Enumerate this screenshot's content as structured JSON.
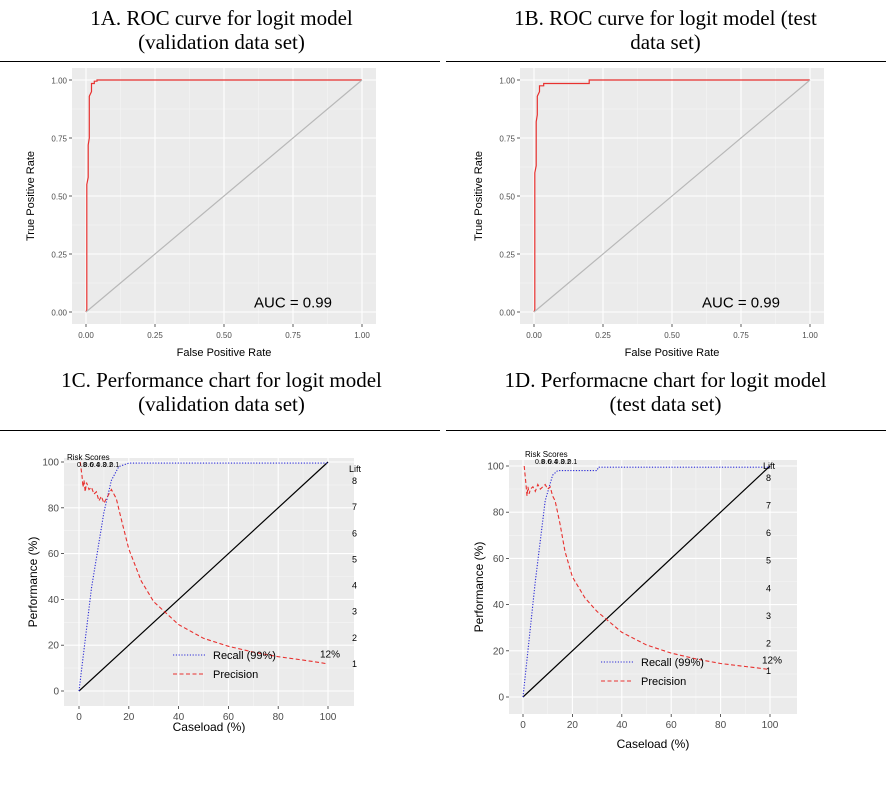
{
  "captions": {
    "a": [
      "1A. ROC curve for logit model",
      "(validation data set)"
    ],
    "b": [
      "1B. ROC curve for logit model (test",
      "data set)"
    ],
    "c": [
      "1C. Performance chart for logit model",
      "(validation data set)"
    ],
    "d": [
      "1D. Performacne chart for logit model",
      "(test data set)"
    ]
  },
  "chart_data": [
    {
      "id": "1A",
      "type": "line",
      "xlabel": "False Positive Rate",
      "ylabel": "True Positive Rate",
      "xlim": [
        0,
        1
      ],
      "ylim": [
        0,
        1
      ],
      "xticks": [
        "0.00",
        "0.25",
        "0.50",
        "0.75",
        "1.00"
      ],
      "yticks": [
        "0.00",
        "0.25",
        "0.50",
        "0.75",
        "1.00"
      ],
      "annotation": "AUC = 0.99",
      "grid": true,
      "series": [
        {
          "color": "#e8312f",
          "x": [
            0,
            0.003,
            0.003,
            0.008,
            0.008,
            0.012,
            0.012,
            0.02,
            0.02,
            0.03,
            0.03,
            0.04,
            0.04,
            1.0
          ],
          "y": [
            0,
            0.01,
            0.55,
            0.58,
            0.72,
            0.75,
            0.93,
            0.95,
            0.985,
            0.985,
            0.995,
            0.995,
            1.0,
            1.0
          ]
        },
        {
          "color": "#b8b8b8",
          "x": [
            0,
            1
          ],
          "y": [
            0,
            1
          ]
        }
      ]
    },
    {
      "id": "1B",
      "type": "line",
      "xlabel": "False Positive Rate",
      "ylabel": "True Positive Rate",
      "xlim": [
        0,
        1
      ],
      "ylim": [
        0,
        1
      ],
      "xticks": [
        "0.00",
        "0.25",
        "0.50",
        "0.75",
        "1.00"
      ],
      "yticks": [
        "0.00",
        "0.25",
        "0.50",
        "0.75",
        "1.00"
      ],
      "annotation": "AUC = 0.99",
      "grid": true,
      "series": [
        {
          "color": "#e8312f",
          "x": [
            0,
            0.003,
            0.003,
            0.008,
            0.008,
            0.012,
            0.012,
            0.02,
            0.02,
            0.035,
            0.035,
            0.2,
            0.2,
            1.0
          ],
          "y": [
            0,
            0.01,
            0.6,
            0.63,
            0.82,
            0.85,
            0.93,
            0.95,
            0.975,
            0.975,
            0.985,
            0.985,
            1.0,
            1.0
          ]
        },
        {
          "color": "#b8b8b8",
          "x": [
            0,
            1
          ],
          "y": [
            0,
            1
          ]
        }
      ]
    },
    {
      "id": "1C",
      "type": "line",
      "xlabel": "Caseload (%)",
      "ylabel": "Performance (%)",
      "xlim": [
        0,
        100
      ],
      "ylim": [
        0,
        100
      ],
      "xticks": [
        "0",
        "20",
        "40",
        "60",
        "80",
        "100"
      ],
      "yticks": [
        "0",
        "20",
        "40",
        "60",
        "80",
        "100"
      ],
      "lift_label": "Lift",
      "lift_ticks": [
        "1",
        "2",
        "3",
        "4",
        "5",
        "6",
        "7",
        "8"
      ],
      "risk_scores_label": "Risk Scores",
      "risk_scores": [
        "0.8",
        "0.6",
        "0.4",
        "0.3",
        "0.2",
        "0.1"
      ],
      "end_label": "12%",
      "legend": [
        "Recall (99%)",
        "Precision"
      ],
      "grid": true,
      "series": [
        {
          "name": "Recall (99%)",
          "color": "#2b2bd6",
          "dash": "dotted",
          "x": [
            0,
            5,
            10,
            13,
            16,
            20,
            100
          ],
          "y": [
            0,
            45,
            78,
            92,
            98,
            99.5,
            99.5
          ]
        },
        {
          "name": "Precision",
          "color": "#e8312f",
          "dash": "dashed",
          "x": [
            0.5,
            1.2,
            1.6,
            2,
            2.5,
            3,
            4,
            5,
            6,
            7,
            8,
            9,
            10,
            11,
            12,
            13,
            14,
            15,
            17,
            20,
            25,
            30,
            40,
            50,
            60,
            70,
            80,
            90,
            95,
            99
          ],
          "y": [
            100,
            94,
            89,
            92,
            87,
            91,
            88,
            89,
            86,
            87,
            83,
            85,
            82,
            84,
            86,
            88,
            86,
            84,
            75,
            62,
            48,
            39,
            29,
            23,
            19.5,
            17,
            15,
            13.5,
            12.7,
            12
          ]
        },
        {
          "color": "#000000",
          "x": [
            0,
            100
          ],
          "y": [
            0,
            100
          ]
        }
      ]
    },
    {
      "id": "1D",
      "type": "line",
      "xlabel": "Caseload (%)",
      "ylabel": "Performance (%)",
      "xlim": [
        0,
        100
      ],
      "ylim": [
        0,
        100
      ],
      "xticks": [
        "0",
        "20",
        "40",
        "60",
        "80",
        "100"
      ],
      "yticks": [
        "0",
        "20",
        "40",
        "60",
        "80",
        "100"
      ],
      "lift_label": "Lift",
      "lift_ticks": [
        "1",
        "2",
        "3",
        "4",
        "5",
        "6",
        "7",
        "8"
      ],
      "risk_scores_label": "Risk Scores",
      "risk_scores": [
        "0.8",
        "0.6",
        "0.4",
        "0.3",
        "0.2",
        "0.1"
      ],
      "end_label": "12%",
      "legend": [
        "Recall (99%)",
        "Precision"
      ],
      "grid": true,
      "series": [
        {
          "name": "Recall (99%)",
          "color": "#2b2bd6",
          "dash": "dotted",
          "x": [
            0,
            5,
            9,
            12,
            14,
            18,
            30,
            30.5,
            100
          ],
          "y": [
            0,
            50,
            85,
            96,
            98,
            98,
            98,
            99.5,
            99.5
          ]
        },
        {
          "name": "Precision",
          "color": "#e8312f",
          "dash": "dashed",
          "x": [
            0.5,
            1.2,
            1.6,
            2,
            2.5,
            3,
            4,
            5,
            6,
            7,
            8,
            9,
            10,
            11,
            12,
            13,
            15,
            17,
            20,
            25,
            30,
            40,
            50,
            60,
            70,
            80,
            90,
            95,
            99
          ],
          "y": [
            100,
            92,
            87,
            91,
            88,
            90,
            91,
            89,
            92,
            90,
            91,
            92,
            90,
            91,
            87,
            85,
            75,
            63,
            52,
            43,
            37,
            28,
            22.5,
            19,
            16.5,
            14.5,
            13.2,
            12.6,
            12
          ]
        },
        {
          "color": "#000000",
          "x": [
            0,
            100
          ],
          "y": [
            0,
            100
          ]
        }
      ]
    }
  ]
}
